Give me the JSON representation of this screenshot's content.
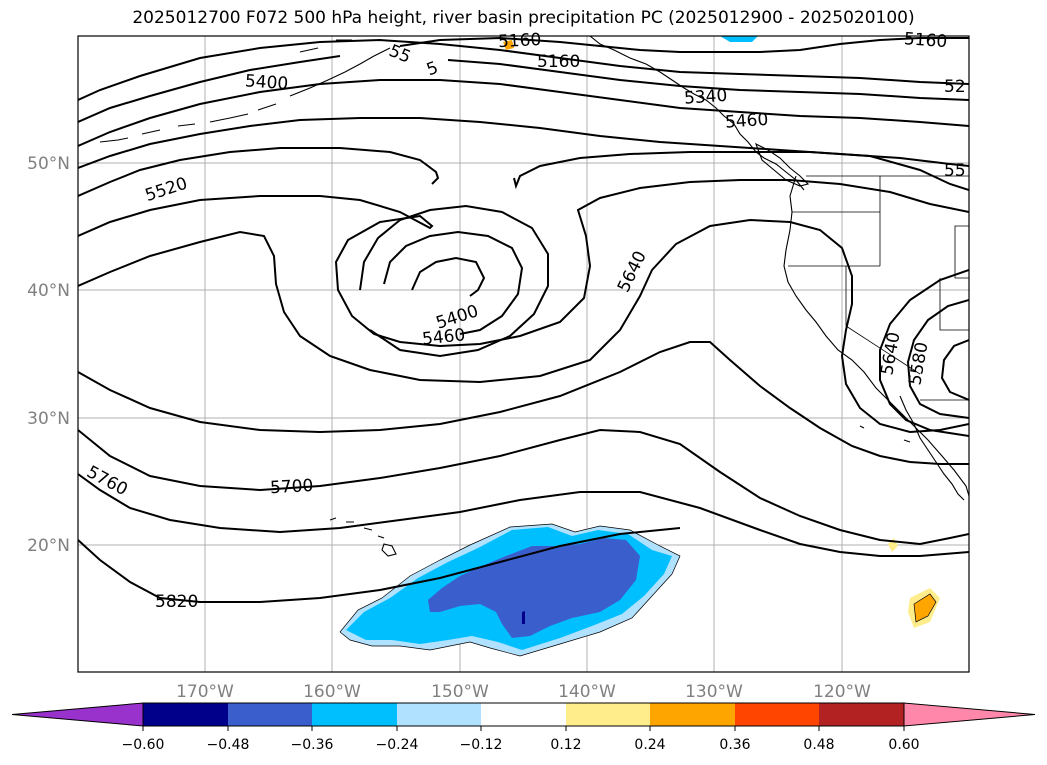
{
  "title": "2025012700 F072 500 hPa height, river basin precipitation PC (2025012900 - 2025020100)",
  "lat_labels": [
    "50°N",
    "40°N",
    "30°N",
    "20°N"
  ],
  "lon_labels": [
    "170°W",
    "160°W",
    "150°W",
    "140°W",
    "130°W",
    "120°W"
  ],
  "contour_labels": [
    "5160",
    "5160",
    "5160",
    "5400",
    "5520",
    "5400",
    "5460",
    "5640",
    "5700",
    "5760",
    "5820",
    "5340",
    "5460",
    "5640",
    "5580",
    "55",
    "5",
    "52",
    "55"
  ],
  "colorbar": {
    "ticks": [
      "−0.60",
      "−0.48",
      "−0.36",
      "−0.24",
      "−0.12",
      "0.12",
      "0.24",
      "0.36",
      "0.48",
      "0.60"
    ],
    "colors": [
      "#9932cc",
      "#00008b",
      "#3a5fcd",
      "#00bfff",
      "#b0e2ff",
      "#ffffff",
      "#ffec8b",
      "#ffa500",
      "#ff4500",
      "#b22222",
      "#ff88aa"
    ]
  },
  "colors": {
    "gridline": "#b0b0b0",
    "contour": "#000000",
    "neg_strong": "#3a5fcd",
    "neg_mid": "#00bfff",
    "neg_weak": "#b0e2ff",
    "pos_mid": "#ffa500",
    "pos_weak": "#ffec8b"
  }
}
